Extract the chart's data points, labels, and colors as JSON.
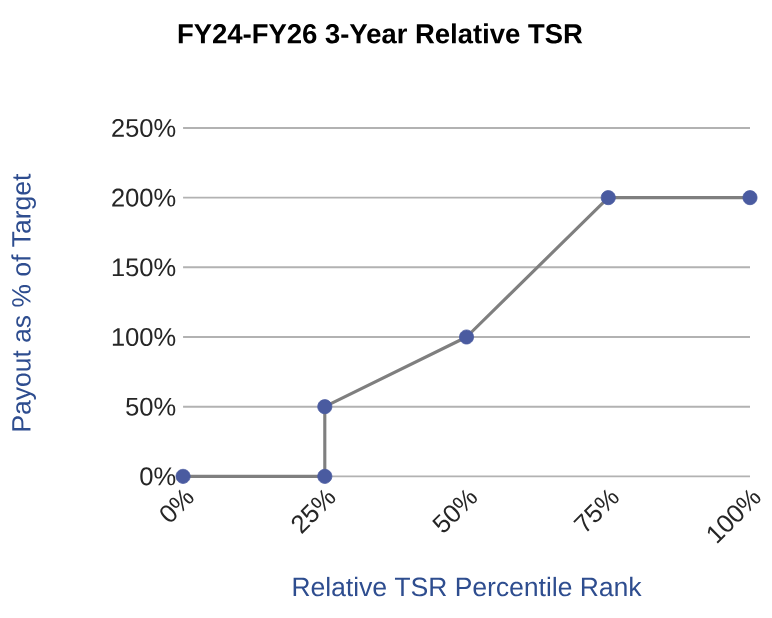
{
  "chart_data": {
    "type": "line",
    "title": "FY24-FY26 3-Year Relative TSR",
    "xlabel": "Relative TSR Percentile Rank",
    "ylabel": "Payout as % of Target",
    "x": [
      0,
      25,
      25,
      50,
      75,
      100
    ],
    "series": [
      {
        "color": "#7f7f7f",
        "values": [
          0,
          0,
          50,
          100,
          200,
          200
        ],
        "marker": "none",
        "line_style": "solid"
      },
      {
        "type": "scatter",
        "color": "#4a5ba0",
        "values": [
          0,
          0,
          50,
          100,
          200,
          200
        ],
        "marker": "circle"
      }
    ],
    "xlim": [
      0,
      100
    ],
    "ylim": [
      0,
      250
    ],
    "xticks": [
      {
        "value": 0,
        "label": "0%"
      },
      {
        "value": 25,
        "label": "25%"
      },
      {
        "value": 50,
        "label": "50%"
      },
      {
        "value": 75,
        "label": "75%"
      },
      {
        "value": 100,
        "label": "100%"
      }
    ],
    "yticks": [
      {
        "value": 0,
        "label": "0%"
      },
      {
        "value": 50,
        "label": "50%"
      },
      {
        "value": 100,
        "label": "100%"
      },
      {
        "value": 150,
        "label": "150%"
      },
      {
        "value": 200,
        "label": "200%"
      },
      {
        "value": 250,
        "label": "250%"
      }
    ],
    "grid": "y"
  }
}
